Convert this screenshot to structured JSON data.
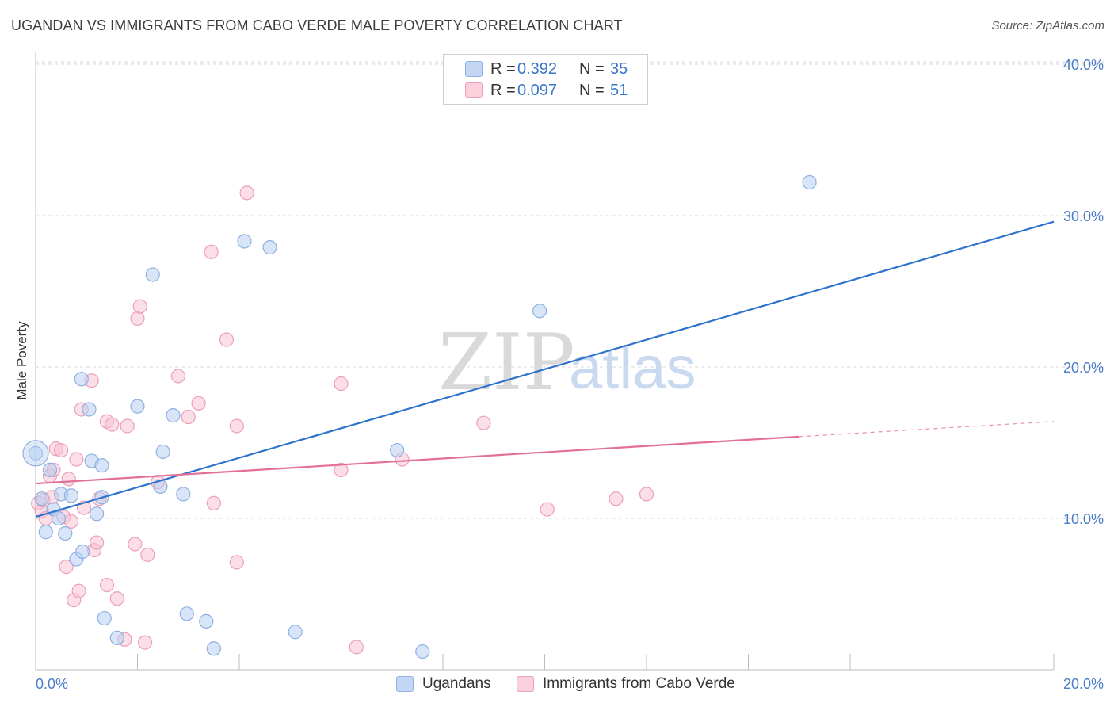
{
  "title": "UGANDAN VS IMMIGRANTS FROM CABO VERDE MALE POVERTY CORRELATION CHART",
  "source": "Source: ZipAtlas.com",
  "watermark": {
    "zip": "ZIP",
    "atlas": "atlas"
  },
  "legend_top": {
    "rows": [
      {
        "r_label": "R =",
        "r_value": "0.392",
        "n_label": "N =",
        "n_value": "35"
      },
      {
        "r_label": "R =",
        "r_value": "0.097",
        "n_label": "N =",
        "n_value": "51"
      }
    ]
  },
  "legend_bottom": [
    "Ugandans",
    "Immigrants from Cabo Verde"
  ],
  "colors": {
    "blue_fill": "#b8d0f2",
    "blue_stroke": "#8fb0e0",
    "blue_line": "#2f73cc",
    "pink_fill": "#f8c3d3",
    "pink_stroke": "#eca0b8",
    "pink_line": "#e36f97",
    "grid": "#d9d9d9",
    "tick_text": "#4a7cc9"
  },
  "chart_data": {
    "type": "scatter",
    "title": "UGANDAN VS IMMIGRANTS FROM CABO VERDE MALE POVERTY CORRELATION CHART",
    "xlabel": "",
    "ylabel": "Male Poverty",
    "xlim": [
      0,
      20
    ],
    "ylim": [
      0,
      40
    ],
    "x_tick_labels": [
      "0.0%",
      "20.0%"
    ],
    "y_ticks": [
      10,
      20,
      30,
      40
    ],
    "y_tick_labels": [
      "10.0%",
      "20.0%",
      "30.0%",
      "40.0%"
    ],
    "grid": true,
    "legend_position": "bottom",
    "series": [
      {
        "name": "Ugandans",
        "r": 0.392,
        "n": 35,
        "points": [
          [
            0.0,
            14.3
          ],
          [
            0.12,
            11.3
          ],
          [
            0.2,
            9.1
          ],
          [
            0.28,
            13.2
          ],
          [
            0.35,
            10.6
          ],
          [
            0.45,
            10.0
          ],
          [
            0.5,
            11.6
          ],
          [
            0.58,
            9.0
          ],
          [
            0.7,
            11.5
          ],
          [
            0.8,
            7.3
          ],
          [
            0.92,
            7.8
          ],
          [
            0.9,
            19.2
          ],
          [
            1.05,
            17.2
          ],
          [
            1.1,
            13.8
          ],
          [
            1.2,
            10.3
          ],
          [
            1.3,
            13.5
          ],
          [
            1.35,
            3.4
          ],
          [
            1.6,
            2.1
          ],
          [
            2.0,
            17.4
          ],
          [
            2.3,
            26.1
          ],
          [
            2.45,
            12.1
          ],
          [
            2.5,
            14.4
          ],
          [
            2.7,
            16.8
          ],
          [
            2.9,
            11.6
          ],
          [
            2.97,
            3.7
          ],
          [
            3.35,
            3.2
          ],
          [
            3.5,
            1.4
          ],
          [
            4.1,
            28.3
          ],
          [
            4.6,
            27.9
          ],
          [
            5.1,
            2.5
          ],
          [
            7.1,
            14.5
          ],
          [
            7.6,
            1.2
          ],
          [
            9.9,
            23.7
          ],
          [
            15.2,
            32.2
          ],
          [
            1.3,
            11.4
          ]
        ],
        "trend": {
          "x": [
            0,
            20
          ],
          "y": [
            10.1,
            29.6
          ]
        }
      },
      {
        "name": "Immigrants from Cabo Verde",
        "r": 0.097,
        "n": 51,
        "points": [
          [
            0.05,
            11.0
          ],
          [
            0.12,
            10.5
          ],
          [
            0.2,
            10.0
          ],
          [
            0.28,
            12.8
          ],
          [
            0.35,
            13.2
          ],
          [
            0.4,
            14.6
          ],
          [
            0.5,
            14.5
          ],
          [
            0.55,
            10.1
          ],
          [
            0.6,
            6.8
          ],
          [
            0.65,
            12.6
          ],
          [
            0.7,
            9.8
          ],
          [
            0.75,
            4.6
          ],
          [
            0.8,
            13.9
          ],
          [
            0.85,
            5.2
          ],
          [
            0.9,
            17.2
          ],
          [
            0.95,
            10.7
          ],
          [
            1.1,
            19.1
          ],
          [
            1.15,
            7.9
          ],
          [
            1.2,
            8.4
          ],
          [
            1.25,
            11.3
          ],
          [
            1.4,
            5.6
          ],
          [
            1.4,
            16.4
          ],
          [
            1.5,
            16.2
          ],
          [
            1.6,
            4.7
          ],
          [
            1.75,
            2.0
          ],
          [
            1.8,
            16.1
          ],
          [
            1.95,
            8.3
          ],
          [
            2.0,
            23.2
          ],
          [
            2.05,
            24.0
          ],
          [
            2.15,
            1.8
          ],
          [
            2.2,
            7.6
          ],
          [
            2.4,
            12.4
          ],
          [
            2.8,
            19.4
          ],
          [
            3.0,
            16.7
          ],
          [
            3.2,
            17.6
          ],
          [
            3.45,
            27.6
          ],
          [
            3.5,
            11.0
          ],
          [
            3.75,
            21.8
          ],
          [
            3.95,
            16.1
          ],
          [
            3.95,
            7.1
          ],
          [
            4.15,
            31.5
          ],
          [
            6.0,
            18.9
          ],
          [
            6.0,
            13.2
          ],
          [
            6.3,
            1.5
          ],
          [
            7.2,
            13.9
          ],
          [
            8.8,
            16.3
          ],
          [
            10.05,
            10.6
          ],
          [
            11.4,
            11.3
          ],
          [
            12.0,
            11.6
          ],
          [
            0.15,
            11.2
          ],
          [
            0.32,
            11.4
          ]
        ],
        "trend": {
          "x": [
            0,
            15
          ],
          "y": [
            12.3,
            15.4
          ]
        },
        "trend_extension": {
          "x": [
            15,
            20
          ],
          "y": [
            15.4,
            16.4
          ]
        }
      }
    ]
  }
}
